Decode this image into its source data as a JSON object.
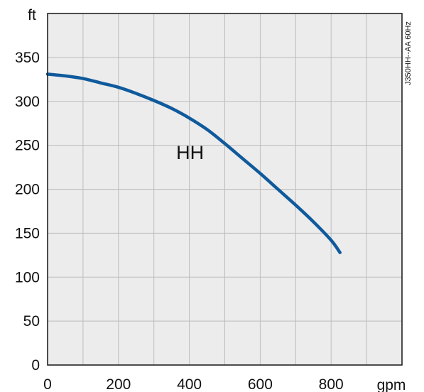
{
  "chart_data": {
    "type": "line",
    "title": "",
    "xlabel": "gpm",
    "ylabel": "ft",
    "xlim": [
      0,
      1000
    ],
    "ylim": [
      0,
      400
    ],
    "x_ticks": [
      0,
      200,
      400,
      600,
      800
    ],
    "y_ticks": [
      0,
      50,
      100,
      150,
      200,
      250,
      300,
      350
    ],
    "x_tick_labels": [
      "0",
      "200",
      "400",
      "600",
      "800"
    ],
    "y_tick_labels": [
      "0",
      "50",
      "100",
      "150",
      "200",
      "250",
      "300",
      "350"
    ],
    "grid": true,
    "series": [
      {
        "name": "HH",
        "color": "#0f5a9c",
        "x": [
          0,
          50,
          100,
          150,
          200,
          250,
          300,
          350,
          400,
          450,
          500,
          550,
          600,
          650,
          700,
          750,
          800,
          825
        ],
        "y": [
          331,
          329,
          326,
          321,
          316,
          309,
          301,
          292,
          281,
          268,
          252,
          235,
          218,
          200,
          182,
          163,
          142,
          128
        ]
      }
    ],
    "annotations": [
      {
        "text": "HH",
        "x": 410,
        "y": 245
      },
      {
        "text": "J350HH--AA 60Hz",
        "orientation": "vertical",
        "position": "top-right"
      }
    ]
  }
}
